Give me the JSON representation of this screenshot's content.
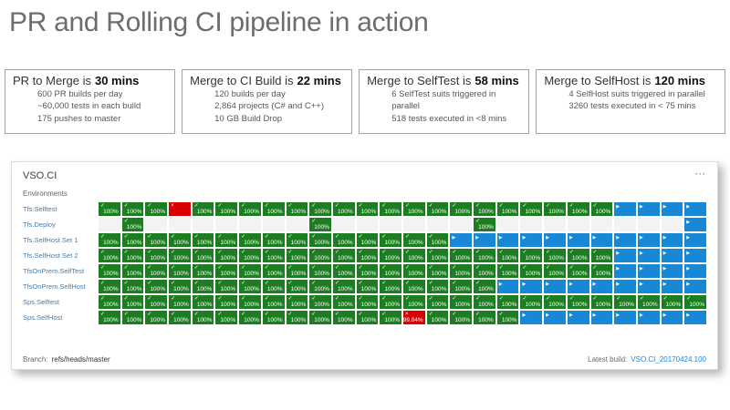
{
  "page_title": "PR and Rolling CI pipeline in action",
  "stat_boxes": [
    {
      "title_prefix": "PR to Merge is",
      "title_bold": "30 mins",
      "lines": [
        "600 PR builds per day",
        "~60,000 tests in each build",
        "175 pushes to master"
      ]
    },
    {
      "title_prefix": "Merge to CI Build is",
      "title_bold": "22 mins",
      "lines": [
        "120 builds per day",
        "2,864 projects (C# and C++)",
        "10 GB Build Drop"
      ]
    },
    {
      "title_prefix": "Merge to SelfTest is",
      "title_bold": "58 mins",
      "lines": [
        "6 SelfTest suits triggered in parallel",
        "518 tests executed in <8 mins"
      ]
    },
    {
      "title_prefix": "Merge to SelfHost is",
      "title_bold": "120 mins",
      "lines": [
        "4 SelfHost suits triggered in parallel",
        "3260 tests executed in < 75 mins"
      ]
    }
  ],
  "dashboard": {
    "title": "VSO.CI",
    "menu_glyph": "···",
    "environments_label": "Environments",
    "pass_label": "100%",
    "icons": {
      "pass": "check-icon",
      "fail": "fail-icon",
      "run": "running-icon"
    },
    "colors": {
      "pass": "#1c7d21",
      "fail": "#db0000",
      "run": "#1787d6",
      "none": "#f3f3f3"
    },
    "rows": [
      {
        "label": "Tfs.Selftest",
        "cells": [
          "pass",
          "pass",
          "pass",
          "fail",
          "pass",
          "pass",
          "pass",
          "pass",
          "pass",
          "pass",
          "pass",
          "pass",
          "pass",
          "pass",
          "pass",
          "pass",
          "pass",
          "pass",
          "pass",
          "pass",
          "pass",
          "pass",
          "run",
          "run",
          "run",
          "run"
        ]
      },
      {
        "label": "Tfs.Deploy",
        "cells": [
          "none",
          "pass",
          "none",
          "none",
          "none",
          "none",
          "none",
          "none",
          "none",
          "pass",
          "none",
          "none",
          "none",
          "none",
          "none",
          "none",
          "pass",
          "none",
          "none",
          "none",
          "none",
          "none",
          "none",
          "none",
          "none",
          "run"
        ]
      },
      {
        "label": "Tfs.SelfHost Set 1",
        "cells": [
          "pass",
          "pass",
          "pass",
          "pass",
          "pass",
          "pass",
          "pass",
          "pass",
          "pass",
          "pass",
          "pass",
          "pass",
          "pass",
          "pass",
          "pass",
          "run",
          "run",
          "run",
          "run",
          "run",
          "run",
          "run",
          "run",
          "run",
          "run",
          "run"
        ]
      },
      {
        "label": "Tfs.SelfHost Set 2",
        "cells": [
          "pass",
          "pass",
          "pass",
          "pass",
          "pass",
          "pass",
          "pass",
          "pass",
          "pass",
          "pass",
          "pass",
          "pass",
          "pass",
          "pass",
          "pass",
          "pass",
          "pass",
          "pass",
          "pass",
          "pass",
          "pass",
          "pass",
          "run",
          "run",
          "run",
          "run"
        ]
      },
      {
        "label": "TfsOnPrem.SelfTest",
        "cells": [
          "pass",
          "pass",
          "pass",
          "pass",
          "pass",
          "pass",
          "pass",
          "pass",
          "pass",
          "pass",
          "pass",
          "pass",
          "pass",
          "pass",
          "pass",
          "pass",
          "pass",
          "pass",
          "pass",
          "pass",
          "pass",
          "pass",
          "run",
          "run",
          "run",
          "run"
        ]
      },
      {
        "label": "TfsOnPrem.SelfHost",
        "cells": [
          "pass",
          "pass",
          "pass",
          "pass",
          "pass",
          "pass",
          "pass",
          "pass",
          "pass",
          "pass",
          "pass",
          "pass",
          "pass",
          "pass",
          "pass",
          "pass",
          "pass",
          "run",
          "run",
          "run",
          "run",
          "run",
          "run",
          "run",
          "run",
          "run"
        ]
      },
      {
        "label": "Sps.Selftest",
        "cells": [
          "pass",
          "pass",
          "pass",
          "pass",
          "pass",
          "pass",
          "pass",
          "pass",
          "pass",
          "pass",
          "pass",
          "pass",
          "pass",
          "pass",
          "pass",
          "pass",
          "pass",
          "pass",
          "pass",
          "pass",
          "pass",
          "pass",
          "pass",
          "pass",
          "pass",
          "pass"
        ]
      },
      {
        "label": "Sps.SelfHost",
        "cells": [
          "pass",
          "pass",
          "pass",
          "pass",
          "pass",
          "pass",
          "pass",
          "pass",
          "pass",
          "pass",
          "pass",
          "pass",
          "pass",
          "fail:99.84%",
          "pass",
          "pass",
          "pass",
          "pass",
          "run",
          "run",
          "run",
          "run",
          "run",
          "run",
          "run",
          "run"
        ]
      }
    ],
    "footer": {
      "branch_label": "Branch:",
      "branch_value": "refs/heads/master",
      "latest_build_label": "Latest build:",
      "latest_build_value": "VSO.CI_20170424.100"
    }
  }
}
